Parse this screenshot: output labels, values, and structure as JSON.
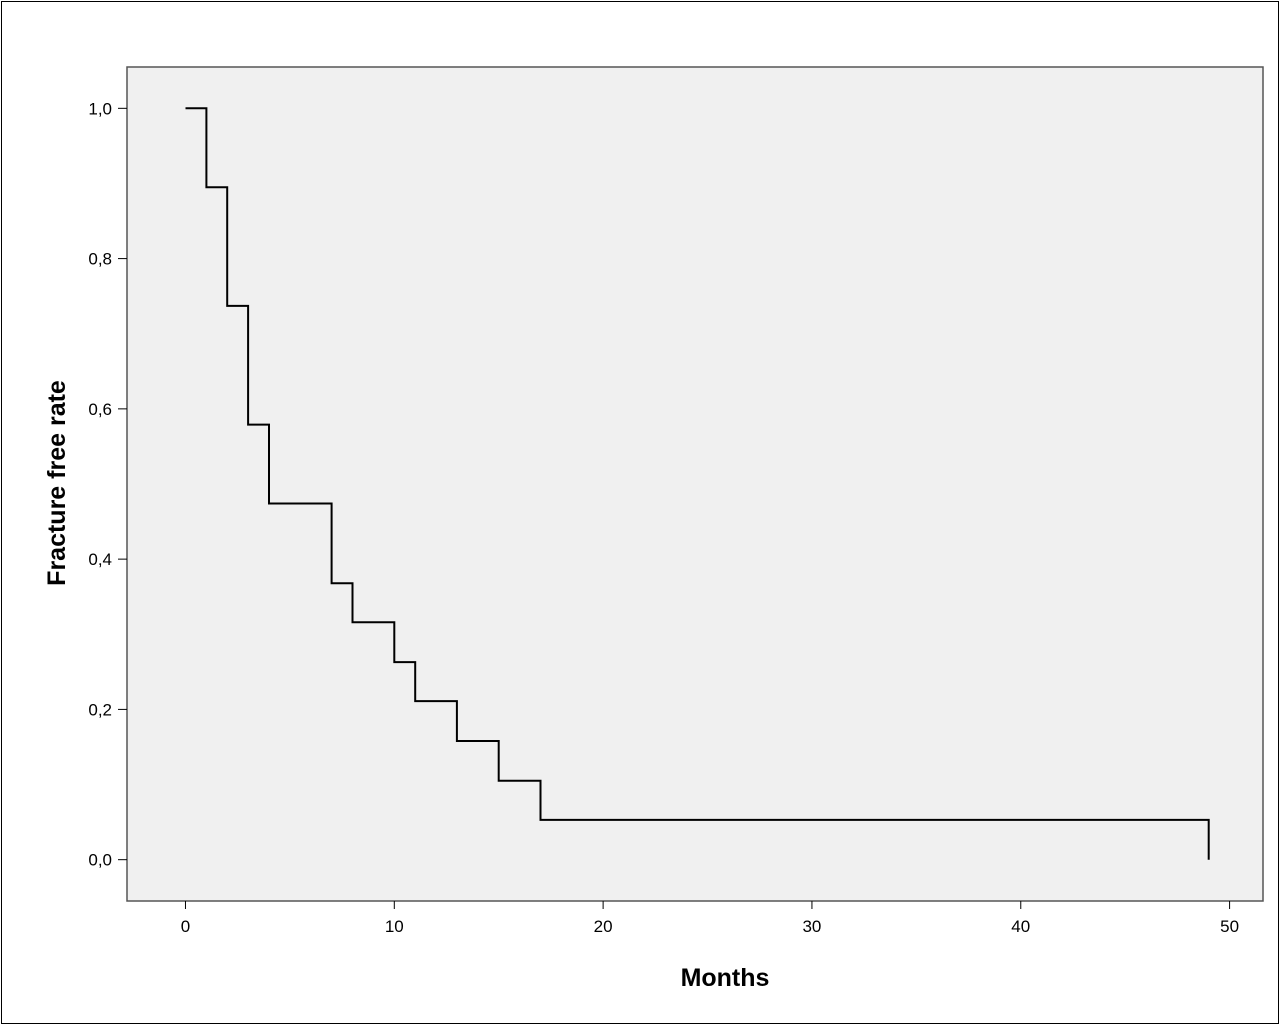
{
  "chart_data": {
    "type": "line",
    "subtype": "step",
    "title": "",
    "xlabel": "Months",
    "ylabel": "Fracture free rate",
    "xlim": [
      -2.8,
      51.6
    ],
    "ylim": [
      -0.055,
      1.055
    ],
    "x_ticks": [
      0,
      10,
      20,
      30,
      40,
      50
    ],
    "x_tick_labels": [
      "0",
      "10",
      "20",
      "30",
      "40",
      "50"
    ],
    "y_ticks": [
      0,
      0.2,
      0.4,
      0.6,
      0.8,
      1.0
    ],
    "y_tick_labels": [
      "0,0",
      "0,2",
      "0,4",
      "0,6",
      "0,8",
      "1,0"
    ],
    "grid": false,
    "background_color": "#f0f0f0",
    "line_color": "#000000",
    "series": [
      {
        "points": [
          [
            0,
            1.0
          ],
          [
            1,
            1.0
          ],
          [
            1,
            0.895
          ],
          [
            2,
            0.895
          ],
          [
            2,
            0.737
          ],
          [
            3,
            0.737
          ],
          [
            3,
            0.579
          ],
          [
            4,
            0.579
          ],
          [
            4,
            0.474
          ],
          [
            7,
            0.474
          ],
          [
            7,
            0.368
          ],
          [
            8,
            0.368
          ],
          [
            8,
            0.316
          ],
          [
            10,
            0.316
          ],
          [
            10,
            0.263
          ],
          [
            11,
            0.263
          ],
          [
            11,
            0.211
          ],
          [
            13,
            0.211
          ],
          [
            13,
            0.158
          ],
          [
            15,
            0.158
          ],
          [
            15,
            0.105
          ],
          [
            17,
            0.105
          ],
          [
            17,
            0.053
          ],
          [
            49,
            0.053
          ],
          [
            49,
            0.0
          ]
        ]
      }
    ]
  }
}
